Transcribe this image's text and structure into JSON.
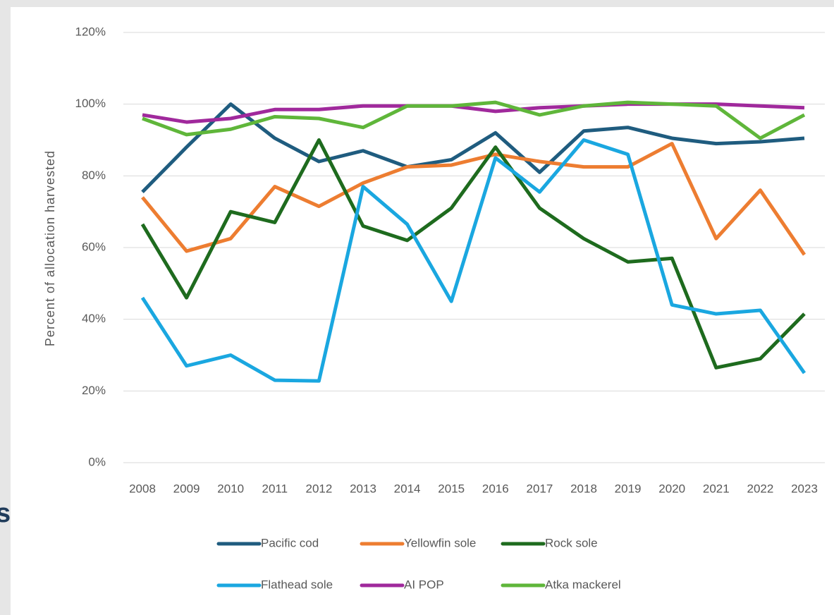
{
  "chart_data": {
    "type": "line",
    "ylabel": "Percent  of allocation harvested",
    "background_text": "s",
    "categories": [
      "2008",
      "2009",
      "2010",
      "2011",
      "2012",
      "2013",
      "2014",
      "2015",
      "2016",
      "2017",
      "2018",
      "2019",
      "2020",
      "2021",
      "2022",
      "2023"
    ],
    "series": [
      {
        "name": "Pacific cod",
        "color": "#1f5c7f",
        "values": [
          75.5,
          88,
          100,
          90.5,
          84,
          87,
          82.5,
          84.5,
          92,
          81,
          92.5,
          93.5,
          90.5,
          89,
          89.5,
          90.5
        ]
      },
      {
        "name": "Yellowfin sole",
        "color": "#ed7d31",
        "values": [
          74,
          59,
          62.5,
          77,
          71.5,
          78,
          82.5,
          83,
          86,
          84,
          82.5,
          82.5,
          89,
          62.5,
          76,
          58
        ]
      },
      {
        "name": "Rock sole",
        "color": "#1e6b1e",
        "values": [
          66.5,
          46,
          70,
          67,
          90,
          66,
          62,
          71,
          88,
          71,
          62.5,
          56,
          57,
          26.5,
          29,
          41.5
        ]
      },
      {
        "name": "Flathead sole",
        "color": "#1aa7e0",
        "values": [
          46,
          27,
          30,
          23,
          22.8,
          77,
          66.5,
          45,
          85,
          75.5,
          90,
          86,
          44,
          41.5,
          42.5,
          25
        ]
      },
      {
        "name": "AI POP",
        "color": "#a0299c",
        "values": [
          97,
          95,
          96,
          98.5,
          98.5,
          99.5,
          99.5,
          99.5,
          98,
          99,
          99.5,
          100,
          100,
          100,
          99.5,
          99
        ]
      },
      {
        "name": "Atka mackerel",
        "color": "#5fb63a",
        "values": [
          96,
          91.5,
          93,
          96.5,
          96,
          93.5,
          99.5,
          99.5,
          100.5,
          97,
          99.5,
          100.5,
          100,
          99.5,
          90.5,
          97
        ]
      }
    ],
    "ylim": [
      0,
      120
    ],
    "yticks": [
      {
        "value": 0,
        "label": "0%"
      },
      {
        "value": 20,
        "label": "20%"
      },
      {
        "value": 40,
        "label": "40%"
      },
      {
        "value": 60,
        "label": "60%"
      },
      {
        "value": 80,
        "label": "80%"
      },
      {
        "value": 100,
        "label": "100%"
      },
      {
        "value": 120,
        "label": "120%"
      }
    ],
    "grid": true
  }
}
